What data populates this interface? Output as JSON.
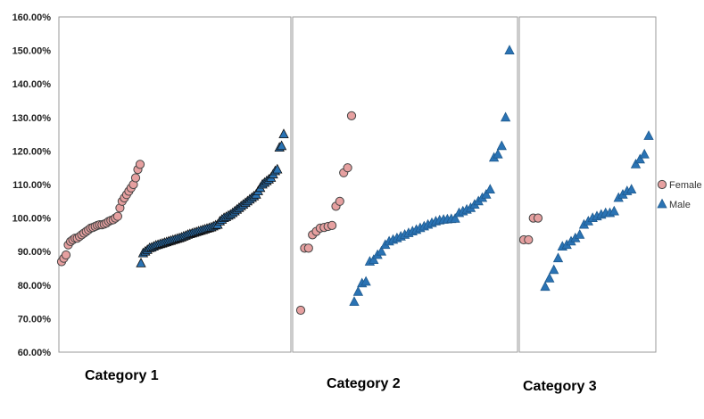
{
  "chart_data": {
    "type": "scatter",
    "ylim": [
      0.6,
      1.6
    ],
    "y_ticks": [
      "60.00%",
      "70.00%",
      "80.00%",
      "90.00%",
      "100.00%",
      "110.00%",
      "120.00%",
      "130.00%",
      "140.00%",
      "150.00%",
      "160.00%"
    ],
    "y_tick_values": [
      0.6,
      0.7,
      0.8,
      0.9,
      1.0,
      1.1,
      1.2,
      1.3,
      1.4,
      1.5,
      1.6
    ],
    "legend": {
      "position": "right",
      "entries": [
        {
          "name": "Female",
          "marker": "circle",
          "color": "#e6a0a0"
        },
        {
          "name": "Male",
          "marker": "triangle",
          "color": "#2a73b4"
        }
      ]
    },
    "colors": {
      "female": "#e6a0a0",
      "male": "#2a73b4",
      "female_outline": "#444444",
      "male_outline_cat1": "#111111",
      "male_outline": "#1f5a8e"
    },
    "grid": false,
    "panels": [
      {
        "label": "Category 1",
        "female": [
          0.87,
          0.88,
          0.89,
          0.92,
          0.93,
          0.935,
          0.94,
          0.94,
          0.945,
          0.95,
          0.955,
          0.96,
          0.965,
          0.97,
          0.972,
          0.975,
          0.978,
          0.98,
          0.98,
          0.982,
          0.985,
          0.99,
          0.993,
          0.995,
          1.0,
          1.005,
          1.03,
          1.05,
          1.06,
          1.07,
          1.08,
          1.09,
          1.1,
          1.12,
          1.145,
          1.16
        ],
        "male": [
          0.865,
          0.895,
          0.9,
          0.905,
          0.91,
          0.912,
          0.915,
          0.918,
          0.92,
          0.922,
          0.924,
          0.926,
          0.928,
          0.93,
          0.932,
          0.934,
          0.936,
          0.938,
          0.94,
          0.942,
          0.945,
          0.947,
          0.95,
          0.952,
          0.954,
          0.956,
          0.958,
          0.96,
          0.962,
          0.964,
          0.966,
          0.968,
          0.97,
          0.972,
          0.975,
          0.978,
          0.98,
          0.99,
          0.995,
          1.0,
          1.003,
          1.007,
          1.01,
          1.015,
          1.02,
          1.025,
          1.03,
          1.035,
          1.04,
          1.045,
          1.05,
          1.055,
          1.06,
          1.065,
          1.07,
          1.08,
          1.09,
          1.1,
          1.105,
          1.11,
          1.115,
          1.12,
          1.13,
          1.14,
          1.145,
          1.21,
          1.215,
          1.25
        ]
      },
      {
        "label": "Category 2",
        "female": [
          0.725,
          0.91,
          0.91,
          0.95,
          0.96,
          0.97,
          0.972,
          0.975,
          0.978,
          1.035,
          1.05,
          1.135,
          1.15,
          1.305
        ],
        "male": [
          0.75,
          0.78,
          0.805,
          0.81,
          0.87,
          0.875,
          0.89,
          0.9,
          0.92,
          0.93,
          0.935,
          0.94,
          0.945,
          0.95,
          0.955,
          0.96,
          0.965,
          0.97,
          0.975,
          0.98,
          0.985,
          0.99,
          0.993,
          0.995,
          0.996,
          0.997,
          0.998,
          1.015,
          1.02,
          1.025,
          1.03,
          1.04,
          1.05,
          1.06,
          1.07,
          1.085,
          1.18,
          1.19,
          1.215,
          1.3,
          1.5
        ]
      },
      {
        "label": "Category 3",
        "female": [
          0.935,
          0.935,
          1.0,
          1.0
        ],
        "male": [
          0.795,
          0.82,
          0.845,
          0.88,
          0.915,
          0.92,
          0.93,
          0.94,
          0.95,
          0.98,
          0.99,
          1.0,
          1.005,
          1.01,
          1.015,
          1.015,
          1.02,
          1.06,
          1.07,
          1.08,
          1.085,
          1.16,
          1.175,
          1.19,
          1.245
        ]
      }
    ]
  }
}
